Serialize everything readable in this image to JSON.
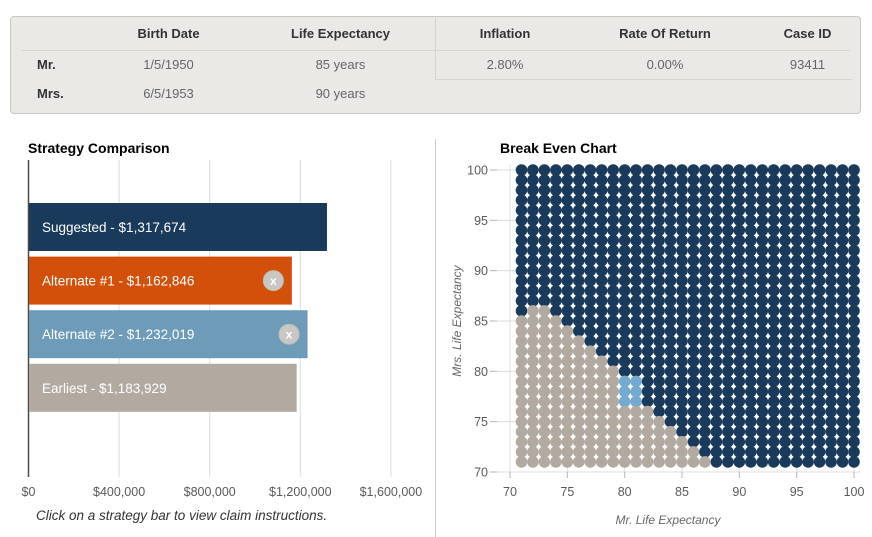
{
  "header_table": {
    "left": {
      "columns": [
        "",
        "Birth Date",
        "Life Expectancy"
      ],
      "rows": [
        {
          "label": "Mr.",
          "birth_date": "1/5/1950",
          "life_expectancy": "85 years"
        },
        {
          "label": "Mrs.",
          "birth_date": "6/5/1953",
          "life_expectancy": "90 years"
        }
      ]
    },
    "right": {
      "columns": [
        "Inflation",
        "Rate Of Return",
        "Case ID"
      ],
      "values": [
        "2.80%",
        "0.00%",
        "93411"
      ]
    }
  },
  "colors": {
    "suggested_navy": "#1a3a5c",
    "alternate1_orange": "#d2500a",
    "alternate2_steel": "#6e9cb8",
    "earliest_taupe": "#b2a9a1",
    "alternate2_cell_blue": "#74aad0",
    "remove_button_gray": "#c9c7c4",
    "gridline": "#dcdcdc",
    "axis_dark": "#4a4a4a",
    "tick_text": "#5a5a5a"
  },
  "chart_data": [
    {
      "id": "strategy-comparison",
      "type": "bar",
      "orientation": "horizontal",
      "title": "Strategy Comparison",
      "caption": "Click on a strategy bar to view claim instructions.",
      "categories": [
        "Suggested",
        "Alternate #1",
        "Alternate #2",
        "Earliest"
      ],
      "values": [
        1317674,
        1162846,
        1232019,
        1183929
      ],
      "bar_labels": [
        "Suggested - $1,317,674",
        "Alternate #1 - $1,162,846",
        "Alternate #2 - $1,232,019",
        "Earliest - $1,183,929"
      ],
      "bar_colors": [
        "#1a3a5c",
        "#d2500a",
        "#6e9cb8",
        "#b2a9a1"
      ],
      "removable": [
        false,
        true,
        true,
        false
      ],
      "x_ticks": [
        "$0",
        "$400,000",
        "$800,000",
        "$1,200,000",
        "$1,600,000"
      ],
      "x_tick_values": [
        0,
        400000,
        800000,
        1200000,
        1600000
      ],
      "xlim": [
        0,
        1600000
      ],
      "grid": true,
      "legend": "none"
    },
    {
      "id": "break-even",
      "type": "scatter",
      "title": "Break Even Chart",
      "xlabel": "Mr. Life Expectancy",
      "ylabel": "Mrs. Life Expectancy",
      "x_ticks": [
        70,
        75,
        80,
        85,
        90,
        95,
        100
      ],
      "y_ticks": [
        70,
        75,
        80,
        85,
        90,
        95,
        100
      ],
      "x_range": [
        71,
        100
      ],
      "y_range": [
        71,
        100
      ],
      "xlim": [
        70,
        100.5
      ],
      "ylim": [
        70,
        100.5
      ],
      "grid": true,
      "legend": "none",
      "description": "One dot per (Mr LE, Mrs LE) year combination; color = best strategy",
      "series_colors": {
        "suggested": "#1a3a5c",
        "earliest": "#b2a9a1",
        "alternate2": "#74aad0"
      },
      "default_series": "suggested",
      "earliest_region_spans": {
        "71": [
          71,
          87
        ],
        "72": [
          71,
          86
        ],
        "73": [
          71,
          85
        ],
        "74": [
          71,
          84
        ],
        "75": [
          71,
          83
        ],
        "76": [
          71,
          82
        ],
        "77": [
          71,
          79
        ],
        "78": [
          71,
          79
        ],
        "79": [
          71,
          79
        ],
        "80": [
          71,
          79
        ],
        "81": [
          71,
          78
        ],
        "82": [
          71,
          77
        ],
        "83": [
          71,
          76
        ],
        "84": [
          71,
          75
        ],
        "85": [
          71,
          74
        ],
        "86": [
          72,
          73
        ]
      },
      "alternate2_cells": [
        [
          80,
          77
        ],
        [
          81,
          77
        ],
        [
          80,
          78
        ],
        [
          81,
          78
        ],
        [
          80,
          79
        ],
        [
          81,
          79
        ]
      ]
    }
  ]
}
